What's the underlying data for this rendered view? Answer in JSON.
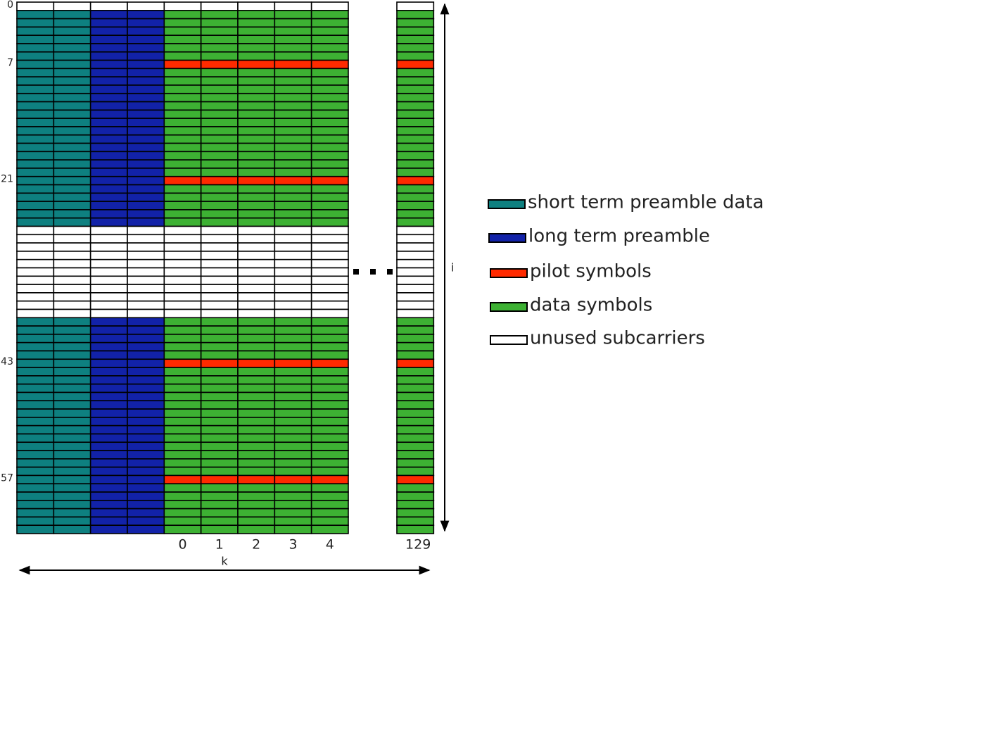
{
  "row_labels": [
    0,
    7,
    21,
    43,
    57
  ],
  "column_labels": [
    0,
    1,
    2,
    3,
    4,
    129
  ],
  "axis_labels": {
    "k": "k",
    "i": "i"
  },
  "legend": [
    {
      "label": "short term preamble data",
      "color": "#0e8080"
    },
    {
      "label": "long term preamble",
      "color": "#1222a8"
    },
    {
      "label": "pilot symbols",
      "color": "#ff2a00"
    },
    {
      "label": "data symbols",
      "color": "#3db133"
    },
    {
      "label": "unused subcarriers",
      "color": "#ffffff"
    }
  ]
}
